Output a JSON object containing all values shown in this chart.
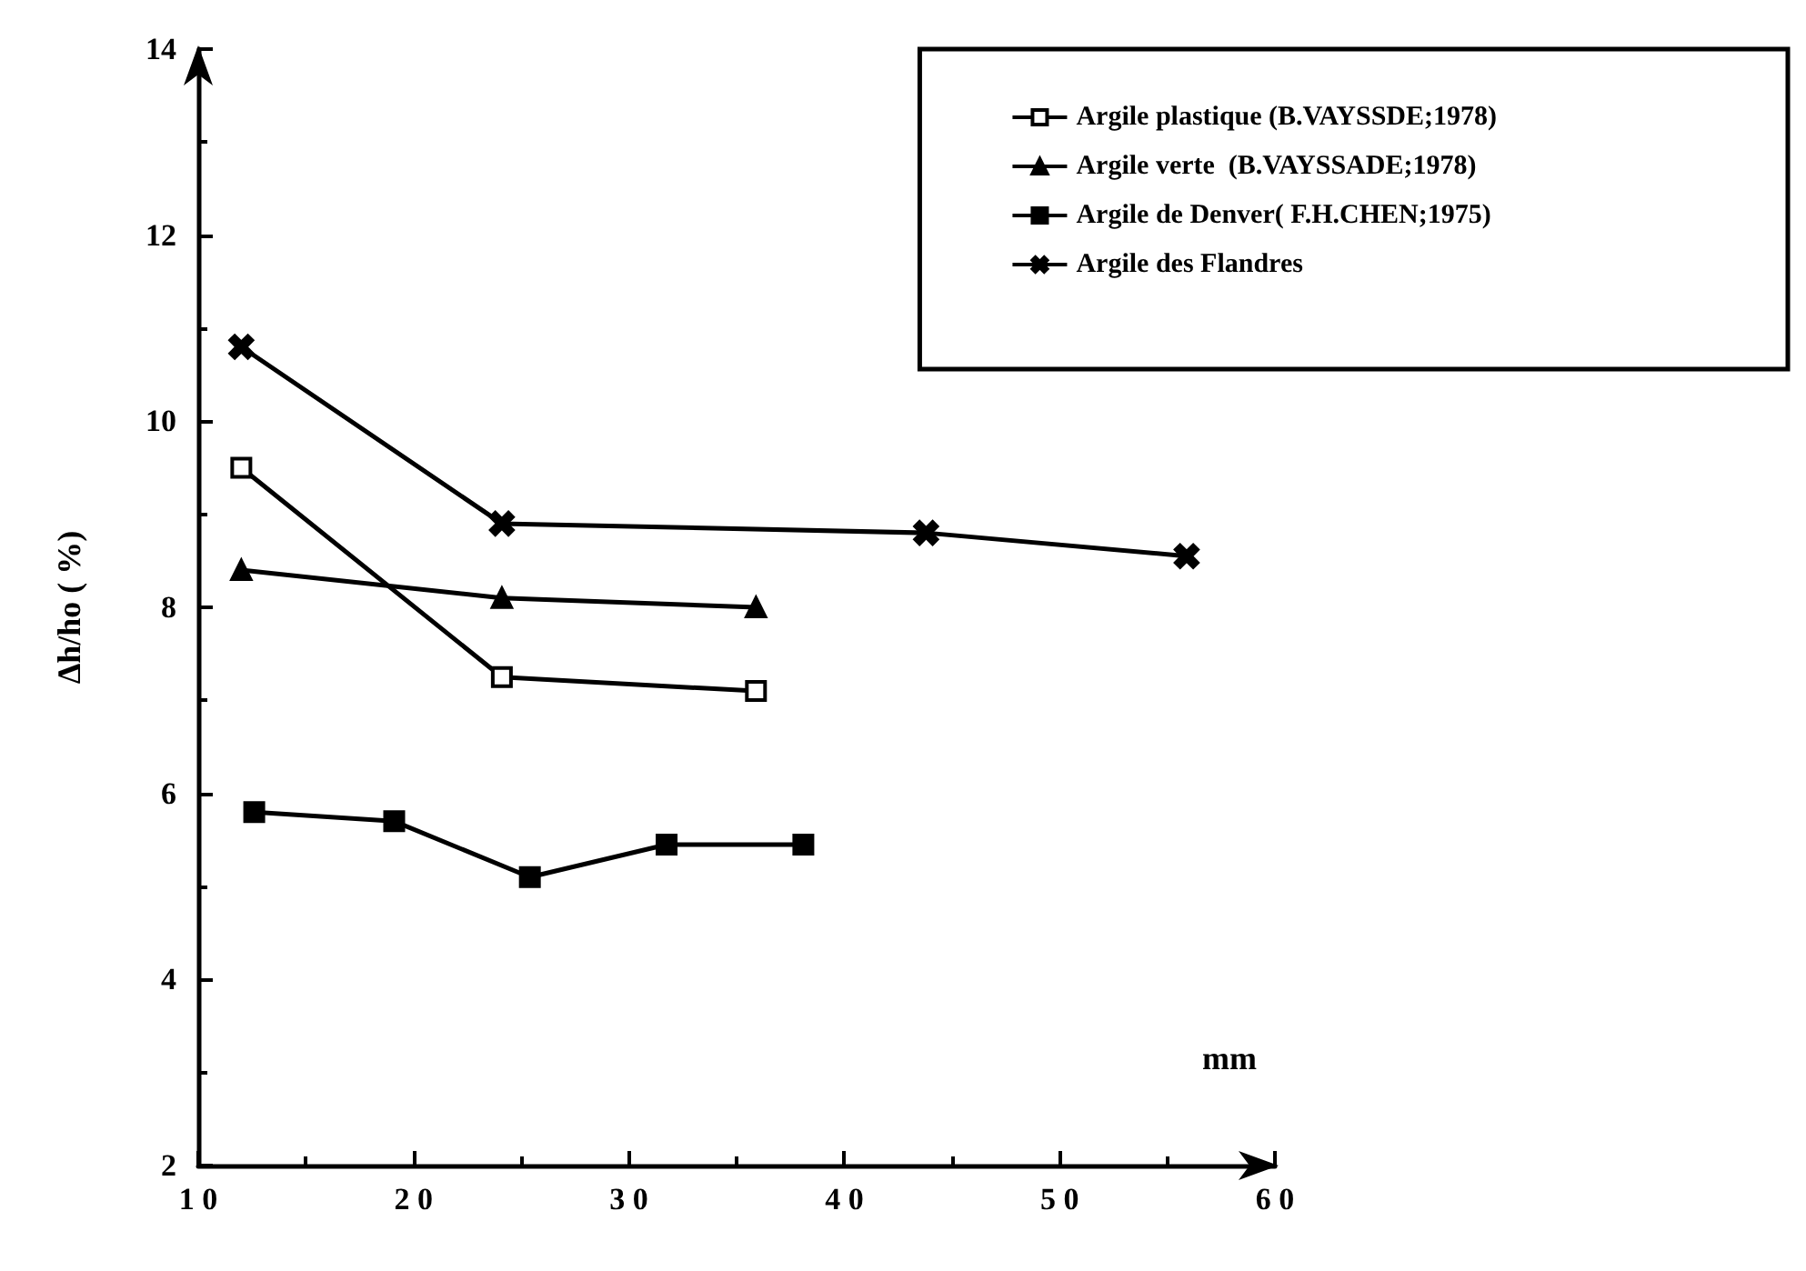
{
  "chart_data": {
    "type": "line",
    "xlabel": "mm",
    "ylabel": "Δh/ho ( %)",
    "xlim": [
      10,
      60
    ],
    "xticks": [
      10,
      20,
      30,
      40,
      50,
      60
    ],
    "ylim": [
      2,
      14
    ],
    "yticks": [
      2,
      4,
      6,
      8,
      10,
      12,
      14
    ],
    "grid": false,
    "legend": "top right",
    "line_style": "solid",
    "series": [
      {
        "name": "Argile plastique (B.VAYSSDE;1978)",
        "color": "#000000",
        "marker": "square",
        "x": [
          12,
          24.1,
          35.9
        ],
        "values": [
          9.5,
          7.25,
          7.1
        ]
      },
      {
        "name": "Argile verte  (B.VAYSSADE;1978)",
        "color": "#000000",
        "marker": "triangle",
        "x": [
          12,
          24.1,
          35.9
        ],
        "values": [
          8.4,
          8.1,
          8.0
        ]
      },
      {
        "name": "Argile de Denver( F.H.CHEN;1975)",
        "color": "#000000",
        "marker": "square",
        "x": [
          12.6,
          19.1,
          25.4,
          31.75,
          38.1
        ],
        "values": [
          5.8,
          5.7,
          5.1,
          5.45,
          5.45
        ]
      },
      {
        "name": "Argile des Flandres",
        "color": "#000000",
        "marker": "cross",
        "x": [
          12,
          24.1,
          43.8,
          55.9
        ],
        "values": [
          10.8,
          8.9,
          8.8,
          8.55
        ]
      }
    ]
  }
}
